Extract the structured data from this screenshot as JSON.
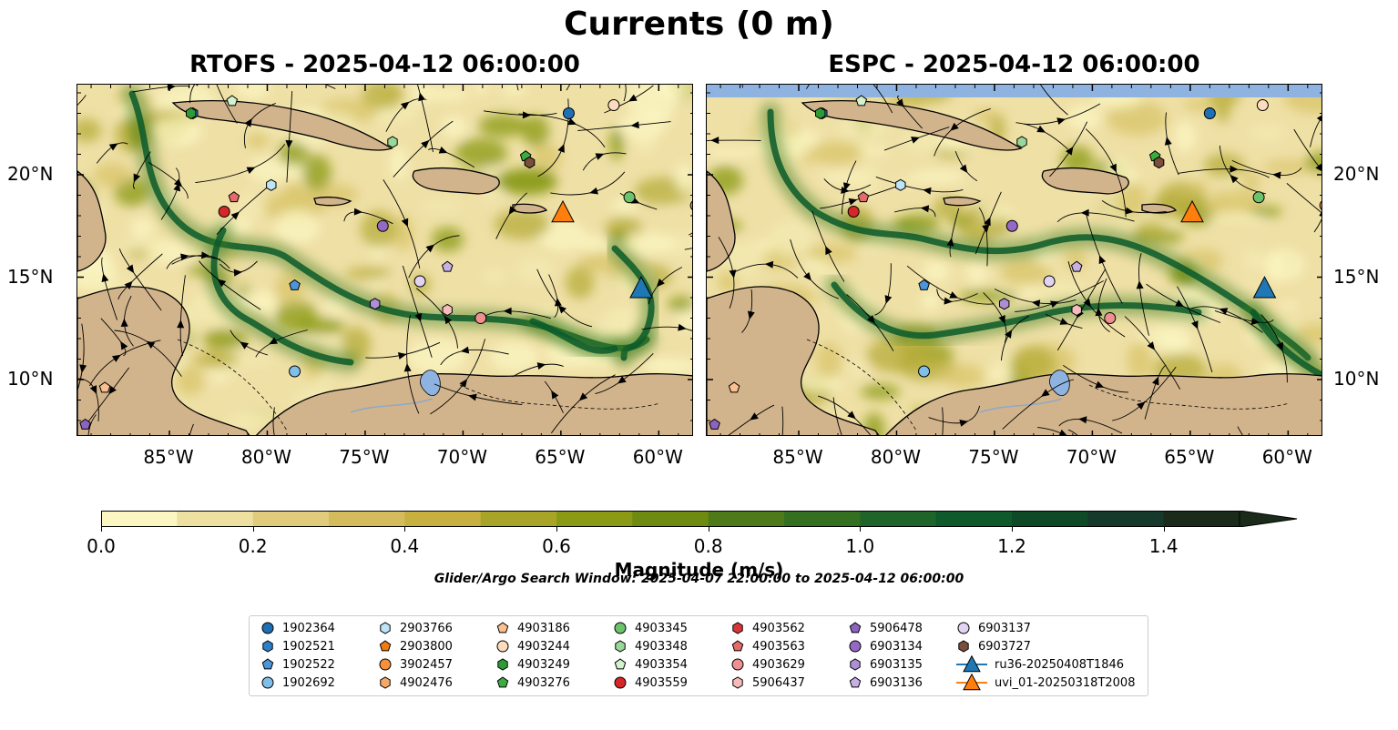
{
  "figure": {
    "suptitle": "Currents (0 m)",
    "search_window": "Glider/Argo Search Window: 2025-04-07 22:00:00 to 2025-04-12 06:00:00"
  },
  "chart_data": [
    {
      "type": "heatmap",
      "title": "RTOFS - 2025-04-12 06:00:00",
      "x_ticks": [
        "85°W",
        "80°W",
        "75°W",
        "70°W",
        "65°W",
        "60°W"
      ],
      "y_ticks": [
        "20°N",
        "15°N",
        "10°N"
      ],
      "xlim": [
        -89.7,
        -58.2
      ],
      "ylim": [
        7.2,
        24.4
      ],
      "colors": {
        "land": "#d2b48c",
        "lake": "#8fb3e0",
        "low": "#fbf6c2",
        "high": "#0b5a2a"
      },
      "markers": [
        {
          "id": "1902364",
          "lon": -64.6,
          "lat": 23.0
        },
        {
          "id": "1902521",
          "lon": -83.8,
          "lat": 23.0
        },
        {
          "id": "1902522",
          "lon": -78.6,
          "lat": 14.6
        },
        {
          "id": "1902692",
          "lon": -78.6,
          "lat": 10.4
        },
        {
          "id": "2903766",
          "lon": -79.8,
          "lat": 19.5
        },
        {
          "id": "3902457",
          "lon": -58.1,
          "lat": 18.5
        },
        {
          "id": "4903186",
          "lon": -88.3,
          "lat": 9.6
        },
        {
          "id": "4903244",
          "lon": -62.3,
          "lat": 23.4
        },
        {
          "id": "4903249",
          "lon": -83.9,
          "lat": 23.0
        },
        {
          "id": "4903276",
          "lon": -66.8,
          "lat": 20.9
        },
        {
          "id": "4903345",
          "lon": -61.5,
          "lat": 18.9
        },
        {
          "id": "4903348",
          "lon": -73.6,
          "lat": 21.6
        },
        {
          "id": "4903354",
          "lon": -81.8,
          "lat": 23.6
        },
        {
          "id": "4903559",
          "lon": -82.2,
          "lat": 18.2
        },
        {
          "id": "4903562",
          "lon": -66.6,
          "lat": 20.6
        },
        {
          "id": "4903563",
          "lon": -81.7,
          "lat": 18.9
        },
        {
          "id": "4903629",
          "lon": -69.1,
          "lat": 13.0
        },
        {
          "id": "5906437",
          "lon": -70.8,
          "lat": 13.4
        },
        {
          "id": "5906478",
          "lon": -89.3,
          "lat": 7.8
        },
        {
          "id": "6903134",
          "lon": -74.1,
          "lat": 17.5
        },
        {
          "id": "6903135",
          "lon": -74.5,
          "lat": 13.7
        },
        {
          "id": "6903136",
          "lon": -70.8,
          "lat": 15.5
        },
        {
          "id": "6903137",
          "lon": -72.2,
          "lat": 14.8
        },
        {
          "id": "6903727",
          "lon": -66.6,
          "lat": 20.6
        },
        {
          "id": "ru36-20250408T1846",
          "lon": -60.9,
          "lat": 14.4
        },
        {
          "id": "uvi_01-20250318T2008",
          "lon": -64.9,
          "lat": 18.1
        }
      ]
    },
    {
      "type": "heatmap",
      "title": "ESPC - 2025-04-12 06:00:00",
      "x_ticks": [
        "85°W",
        "80°W",
        "75°W",
        "70°W",
        "65°W",
        "60°W"
      ],
      "y_ticks": [
        "20°N",
        "15°N",
        "10°N"
      ],
      "xlim": [
        -89.7,
        -58.2
      ],
      "ylim": [
        7.2,
        24.4
      ],
      "colors": {
        "land": "#d2b48c",
        "lake": "#8fb3e0",
        "nodata": "#8fb3e0",
        "low": "#fbf6c2",
        "high": "#0b5a2a"
      },
      "markers": [
        {
          "id": "1902364",
          "lon": -64.0,
          "lat": 23.0
        },
        {
          "id": "1902521",
          "lon": -83.8,
          "lat": 23.0
        },
        {
          "id": "1902522",
          "lon": -78.6,
          "lat": 14.6
        },
        {
          "id": "1902692",
          "lon": -78.6,
          "lat": 10.4
        },
        {
          "id": "2903766",
          "lon": -79.8,
          "lat": 19.5
        },
        {
          "id": "3902457",
          "lon": -58.1,
          "lat": 18.5
        },
        {
          "id": "4903186",
          "lon": -88.3,
          "lat": 9.6
        },
        {
          "id": "4903244",
          "lon": -61.3,
          "lat": 23.4
        },
        {
          "id": "4903249",
          "lon": -83.9,
          "lat": 23.0
        },
        {
          "id": "4903276",
          "lon": -66.8,
          "lat": 20.9
        },
        {
          "id": "4903345",
          "lon": -61.5,
          "lat": 18.9
        },
        {
          "id": "4903348",
          "lon": -73.6,
          "lat": 21.6
        },
        {
          "id": "4903354",
          "lon": -81.8,
          "lat": 23.6
        },
        {
          "id": "4903559",
          "lon": -82.2,
          "lat": 18.2
        },
        {
          "id": "4903562",
          "lon": -66.6,
          "lat": 20.6
        },
        {
          "id": "4903563",
          "lon": -81.7,
          "lat": 18.9
        },
        {
          "id": "4903629",
          "lon": -69.1,
          "lat": 13.0
        },
        {
          "id": "5906437",
          "lon": -70.8,
          "lat": 13.4
        },
        {
          "id": "5906478",
          "lon": -89.3,
          "lat": 7.8
        },
        {
          "id": "6903134",
          "lon": -74.1,
          "lat": 17.5
        },
        {
          "id": "6903135",
          "lon": -74.5,
          "lat": 13.7
        },
        {
          "id": "6903136",
          "lon": -70.8,
          "lat": 15.5
        },
        {
          "id": "6903137",
          "lon": -72.2,
          "lat": 14.8
        },
        {
          "id": "6903727",
          "lon": -66.6,
          "lat": 20.6
        },
        {
          "id": "ru36-20250408T1846",
          "lon": -61.2,
          "lat": 14.4
        },
        {
          "id": "uvi_01-20250318T2008",
          "lon": -64.9,
          "lat": 18.1
        }
      ]
    }
  ],
  "colorbar": {
    "label": "Magnitude (m/s)",
    "ticks": [
      "0.0",
      "0.2",
      "0.4",
      "0.6",
      "0.8",
      "1.0",
      "1.2",
      "1.4"
    ],
    "tick_values": [
      0.0,
      0.2,
      0.4,
      0.6,
      0.8,
      1.0,
      1.2,
      1.4
    ],
    "vmin": 0.0,
    "vmax": 1.5,
    "step": 0.1,
    "extend": "max",
    "colors": [
      "#fbf6c2",
      "#ede0a0",
      "#e0cc7c",
      "#d4bb5c",
      "#c8b040",
      "#a8a428",
      "#8a9a14",
      "#6e8a10",
      "#4f7a1a",
      "#357020",
      "#1f6428",
      "#0f5a2a",
      "#0e4a25",
      "#15392a",
      "#1a2b1c"
    ]
  },
  "legend": {
    "items": [
      {
        "label": "1902364",
        "shape": "circle",
        "color": "#1f6fb4"
      },
      {
        "label": "1902521",
        "shape": "hexagon",
        "color": "#2f7fc8"
      },
      {
        "label": "1902522",
        "shape": "pentagon",
        "color": "#4b95d8"
      },
      {
        "label": "1902692",
        "shape": "circle",
        "color": "#7fbfe8"
      },
      {
        "label": "2903766",
        "shape": "hexagon",
        "color": "#bfe4f7"
      },
      {
        "label": "2903800",
        "shape": "pentagon",
        "color": "#f07b12"
      },
      {
        "label": "3902457",
        "shape": "circle",
        "color": "#f7913b"
      },
      {
        "label": "4902476",
        "shape": "hexagon",
        "color": "#f8a866"
      },
      {
        "label": "4903186",
        "shape": "pentagon",
        "color": "#fbc08f"
      },
      {
        "label": "4903244",
        "shape": "circle",
        "color": "#fcdcbc"
      },
      {
        "label": "4903249",
        "shape": "hexagon",
        "color": "#2e9b34"
      },
      {
        "label": "4903276",
        "shape": "pentagon",
        "color": "#3cac40"
      },
      {
        "label": "4903345",
        "shape": "circle",
        "color": "#6cc36a"
      },
      {
        "label": "4903348",
        "shape": "hexagon",
        "color": "#9ad89a"
      },
      {
        "label": "4903354",
        "shape": "pentagon",
        "color": "#d2f3cd"
      },
      {
        "label": "4903559",
        "shape": "circle",
        "color": "#d62728"
      },
      {
        "label": "4903562",
        "shape": "hexagon",
        "color": "#d9363a"
      },
      {
        "label": "4903563",
        "shape": "pentagon",
        "color": "#e56a6a"
      },
      {
        "label": "4903629",
        "shape": "circle",
        "color": "#f08f8f"
      },
      {
        "label": "5906437",
        "shape": "hexagon",
        "color": "#f6bcbc"
      },
      {
        "label": "5906478",
        "shape": "pentagon",
        "color": "#8c64bf"
      },
      {
        "label": "6903134",
        "shape": "circle",
        "color": "#9469c6"
      },
      {
        "label": "6903135",
        "shape": "hexagon",
        "color": "#ae8ed6"
      },
      {
        "label": "6903136",
        "shape": "pentagon",
        "color": "#c8afe4"
      },
      {
        "label": "6903137",
        "shape": "circle",
        "color": "#e2d3f1"
      },
      {
        "label": "6903727",
        "shape": "hexagon",
        "color": "#7a4e3c"
      },
      {
        "label": "ru36-20250408T1846",
        "shape": "triangle",
        "color": "#1f77b4"
      },
      {
        "label": "uvi_01-20250318T2008",
        "shape": "triangle",
        "color": "#ff7f0e"
      }
    ]
  }
}
